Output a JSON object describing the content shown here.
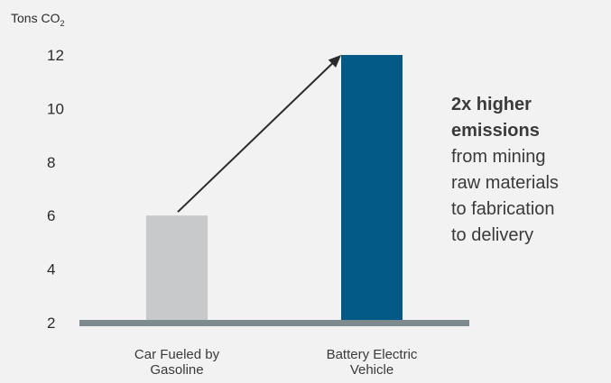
{
  "chart_data": {
    "type": "bar",
    "ylabel_main": "Tons CO",
    "ylabel_sub": "2",
    "categories": [
      "Car Fueled by Gasoline",
      "Battery Electric Vehicle"
    ],
    "category_lines": [
      [
        "Car Fueled by",
        "Gasoline"
      ],
      [
        "Battery Electric",
        "Vehicle"
      ]
    ],
    "values": [
      6,
      12
    ],
    "bar_colors": [
      "#c8c9ca",
      "#045a87"
    ],
    "yticks": [
      2,
      4,
      6,
      8,
      10,
      12
    ],
    "ylim": [
      2,
      12
    ],
    "baseline_color": "#7d8b8f",
    "arrow": {
      "from": 0,
      "to": 1
    },
    "annotation_bold": [
      "2x higher",
      "emissions"
    ],
    "annotation_lines": [
      "from mining",
      "raw materials",
      "to fabrication",
      "to delivery"
    ]
  }
}
